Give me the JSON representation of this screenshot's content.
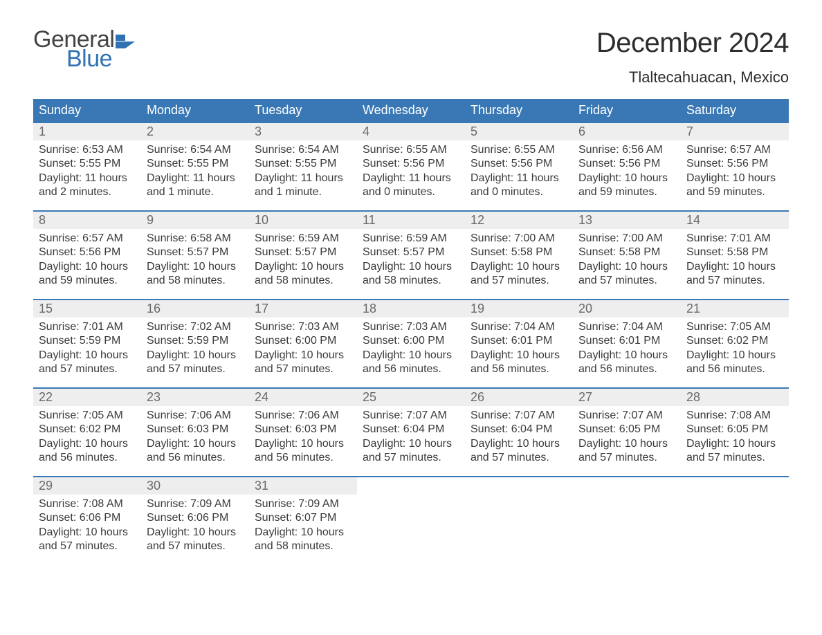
{
  "logo": {
    "word1": "General",
    "word2": "Blue",
    "flag_color": "#2f72b4"
  },
  "header": {
    "month_title": "December 2024",
    "location": "Tlaltecahuacan, Mexico"
  },
  "styling": {
    "header_bg": "#3a78b5",
    "header_text": "#ffffff",
    "week_border": "#3a78b5",
    "daynum_bg": "#eeeeee",
    "daynum_text": "#6a6a6a",
    "body_text": "#3a3a3a",
    "page_bg": "#ffffff",
    "font_family": "Arial",
    "month_title_fontsize": 40,
    "location_fontsize": 22,
    "header_cell_fontsize": 18,
    "daynum_fontsize": 18,
    "daytext_fontsize": 16
  },
  "day_headers": [
    "Sunday",
    "Monday",
    "Tuesday",
    "Wednesday",
    "Thursday",
    "Friday",
    "Saturday"
  ],
  "weeks": [
    [
      {
        "n": "1",
        "sunrise": "Sunrise: 6:53 AM",
        "sunset": "Sunset: 5:55 PM",
        "d1": "Daylight: 11 hours",
        "d2": "and 2 minutes."
      },
      {
        "n": "2",
        "sunrise": "Sunrise: 6:54 AM",
        "sunset": "Sunset: 5:55 PM",
        "d1": "Daylight: 11 hours",
        "d2": "and 1 minute."
      },
      {
        "n": "3",
        "sunrise": "Sunrise: 6:54 AM",
        "sunset": "Sunset: 5:55 PM",
        "d1": "Daylight: 11 hours",
        "d2": "and 1 minute."
      },
      {
        "n": "4",
        "sunrise": "Sunrise: 6:55 AM",
        "sunset": "Sunset: 5:56 PM",
        "d1": "Daylight: 11 hours",
        "d2": "and 0 minutes."
      },
      {
        "n": "5",
        "sunrise": "Sunrise: 6:55 AM",
        "sunset": "Sunset: 5:56 PM",
        "d1": "Daylight: 11 hours",
        "d2": "and 0 minutes."
      },
      {
        "n": "6",
        "sunrise": "Sunrise: 6:56 AM",
        "sunset": "Sunset: 5:56 PM",
        "d1": "Daylight: 10 hours",
        "d2": "and 59 minutes."
      },
      {
        "n": "7",
        "sunrise": "Sunrise: 6:57 AM",
        "sunset": "Sunset: 5:56 PM",
        "d1": "Daylight: 10 hours",
        "d2": "and 59 minutes."
      }
    ],
    [
      {
        "n": "8",
        "sunrise": "Sunrise: 6:57 AM",
        "sunset": "Sunset: 5:56 PM",
        "d1": "Daylight: 10 hours",
        "d2": "and 59 minutes."
      },
      {
        "n": "9",
        "sunrise": "Sunrise: 6:58 AM",
        "sunset": "Sunset: 5:57 PM",
        "d1": "Daylight: 10 hours",
        "d2": "and 58 minutes."
      },
      {
        "n": "10",
        "sunrise": "Sunrise: 6:59 AM",
        "sunset": "Sunset: 5:57 PM",
        "d1": "Daylight: 10 hours",
        "d2": "and 58 minutes."
      },
      {
        "n": "11",
        "sunrise": "Sunrise: 6:59 AM",
        "sunset": "Sunset: 5:57 PM",
        "d1": "Daylight: 10 hours",
        "d2": "and 58 minutes."
      },
      {
        "n": "12",
        "sunrise": "Sunrise: 7:00 AM",
        "sunset": "Sunset: 5:58 PM",
        "d1": "Daylight: 10 hours",
        "d2": "and 57 minutes."
      },
      {
        "n": "13",
        "sunrise": "Sunrise: 7:00 AM",
        "sunset": "Sunset: 5:58 PM",
        "d1": "Daylight: 10 hours",
        "d2": "and 57 minutes."
      },
      {
        "n": "14",
        "sunrise": "Sunrise: 7:01 AM",
        "sunset": "Sunset: 5:58 PM",
        "d1": "Daylight: 10 hours",
        "d2": "and 57 minutes."
      }
    ],
    [
      {
        "n": "15",
        "sunrise": "Sunrise: 7:01 AM",
        "sunset": "Sunset: 5:59 PM",
        "d1": "Daylight: 10 hours",
        "d2": "and 57 minutes."
      },
      {
        "n": "16",
        "sunrise": "Sunrise: 7:02 AM",
        "sunset": "Sunset: 5:59 PM",
        "d1": "Daylight: 10 hours",
        "d2": "and 57 minutes."
      },
      {
        "n": "17",
        "sunrise": "Sunrise: 7:03 AM",
        "sunset": "Sunset: 6:00 PM",
        "d1": "Daylight: 10 hours",
        "d2": "and 57 minutes."
      },
      {
        "n": "18",
        "sunrise": "Sunrise: 7:03 AM",
        "sunset": "Sunset: 6:00 PM",
        "d1": "Daylight: 10 hours",
        "d2": "and 56 minutes."
      },
      {
        "n": "19",
        "sunrise": "Sunrise: 7:04 AM",
        "sunset": "Sunset: 6:01 PM",
        "d1": "Daylight: 10 hours",
        "d2": "and 56 minutes."
      },
      {
        "n": "20",
        "sunrise": "Sunrise: 7:04 AM",
        "sunset": "Sunset: 6:01 PM",
        "d1": "Daylight: 10 hours",
        "d2": "and 56 minutes."
      },
      {
        "n": "21",
        "sunrise": "Sunrise: 7:05 AM",
        "sunset": "Sunset: 6:02 PM",
        "d1": "Daylight: 10 hours",
        "d2": "and 56 minutes."
      }
    ],
    [
      {
        "n": "22",
        "sunrise": "Sunrise: 7:05 AM",
        "sunset": "Sunset: 6:02 PM",
        "d1": "Daylight: 10 hours",
        "d2": "and 56 minutes."
      },
      {
        "n": "23",
        "sunrise": "Sunrise: 7:06 AM",
        "sunset": "Sunset: 6:03 PM",
        "d1": "Daylight: 10 hours",
        "d2": "and 56 minutes."
      },
      {
        "n": "24",
        "sunrise": "Sunrise: 7:06 AM",
        "sunset": "Sunset: 6:03 PM",
        "d1": "Daylight: 10 hours",
        "d2": "and 56 minutes."
      },
      {
        "n": "25",
        "sunrise": "Sunrise: 7:07 AM",
        "sunset": "Sunset: 6:04 PM",
        "d1": "Daylight: 10 hours",
        "d2": "and 57 minutes."
      },
      {
        "n": "26",
        "sunrise": "Sunrise: 7:07 AM",
        "sunset": "Sunset: 6:04 PM",
        "d1": "Daylight: 10 hours",
        "d2": "and 57 minutes."
      },
      {
        "n": "27",
        "sunrise": "Sunrise: 7:07 AM",
        "sunset": "Sunset: 6:05 PM",
        "d1": "Daylight: 10 hours",
        "d2": "and 57 minutes."
      },
      {
        "n": "28",
        "sunrise": "Sunrise: 7:08 AM",
        "sunset": "Sunset: 6:05 PM",
        "d1": "Daylight: 10 hours",
        "d2": "and 57 minutes."
      }
    ],
    [
      {
        "n": "29",
        "sunrise": "Sunrise: 7:08 AM",
        "sunset": "Sunset: 6:06 PM",
        "d1": "Daylight: 10 hours",
        "d2": "and 57 minutes."
      },
      {
        "n": "30",
        "sunrise": "Sunrise: 7:09 AM",
        "sunset": "Sunset: 6:06 PM",
        "d1": "Daylight: 10 hours",
        "d2": "and 57 minutes."
      },
      {
        "n": "31",
        "sunrise": "Sunrise: 7:09 AM",
        "sunset": "Sunset: 6:07 PM",
        "d1": "Daylight: 10 hours",
        "d2": "and 58 minutes."
      },
      null,
      null,
      null,
      null
    ]
  ]
}
